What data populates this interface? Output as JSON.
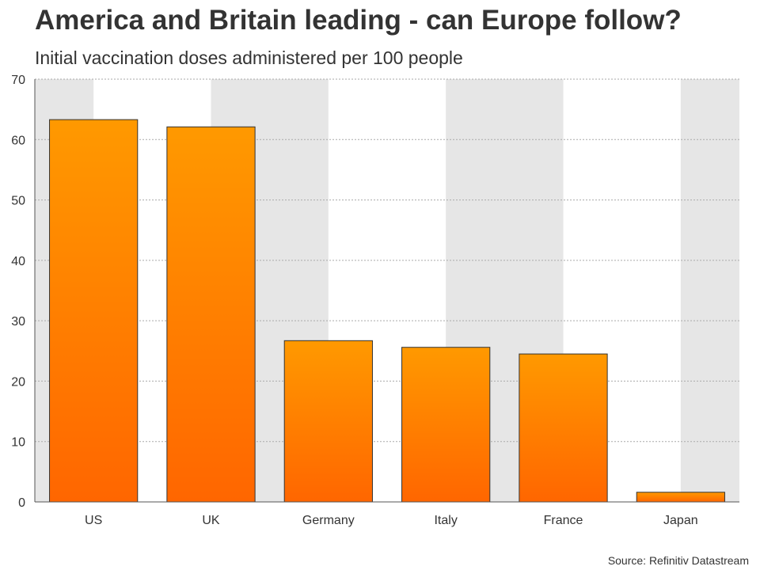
{
  "chart_data": {
    "type": "bar",
    "title": "America and Britain leading - can Europe follow?",
    "subtitle": "Initial vaccination doses administered per 100 people",
    "source": "Source: Refinitiv Datastream",
    "categories": [
      "US",
      "UK",
      "Germany",
      "Italy",
      "France",
      "Japan"
    ],
    "values": [
      63.3,
      62.1,
      26.7,
      25.6,
      24.5,
      1.6
    ],
    "ylim": [
      0,
      70
    ],
    "yticks": [
      0,
      10,
      20,
      30,
      40,
      50,
      60,
      70
    ],
    "grid": true,
    "colors": {
      "bar_top": "#ff9900",
      "bar_bottom": "#ff6600",
      "bar_stroke": "#333333",
      "band": "#e6e6e6",
      "grid": "#aaaaaa"
    }
  }
}
